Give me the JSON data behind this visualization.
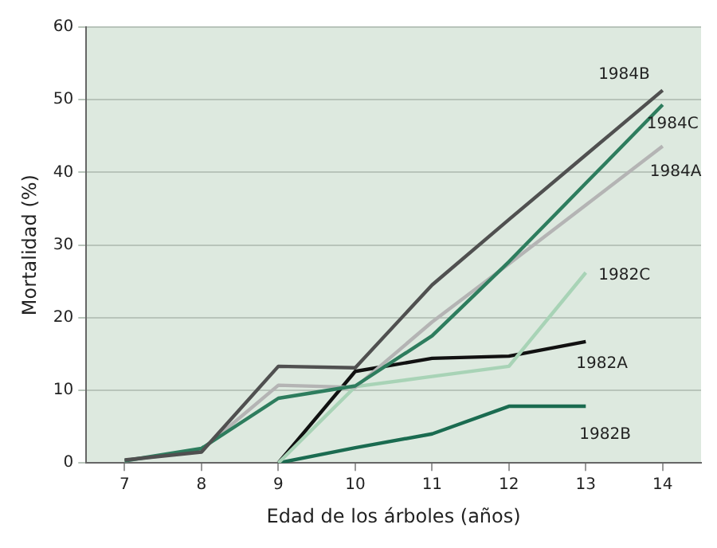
{
  "chart_data": {
    "type": "line",
    "xlabel": "Edad de los árboles (años)",
    "ylabel": "Mortalidad (%)",
    "categories": [
      "7",
      "8",
      "9",
      "10",
      "11",
      "12",
      "13",
      "14"
    ],
    "ylim": [
      0,
      60
    ],
    "yticks": [
      0,
      10,
      20,
      30,
      40,
      50,
      60
    ],
    "grid": "y",
    "legend": false,
    "marker": "none",
    "line_style": "solid",
    "series": [
      {
        "name": "1984B",
        "color": "#505050",
        "values": [
          0.4,
          1.5,
          13.3,
          13.1,
          24.5,
          33.5,
          42.4,
          51.3
        ]
      },
      {
        "name": "1984C",
        "color": "#2e7d5e",
        "values": [
          0.3,
          2,
          8.9,
          10.6,
          17.5,
          27.7,
          38.5,
          49.3
        ]
      },
      {
        "name": "1984A",
        "color": "#b4b4b4",
        "values": [
          0.3,
          1.8,
          10.7,
          10.4,
          19.4,
          27.4,
          35.5,
          43.6
        ]
      },
      {
        "name": "1982C",
        "color": "#a8d3b6",
        "values": [
          null,
          null,
          0,
          10.5,
          11.9,
          13.3,
          26.2,
          null
        ]
      },
      {
        "name": "1982A",
        "color": "#111111",
        "values": [
          null,
          null,
          0,
          12.6,
          14.4,
          14.7,
          16.7,
          null
        ]
      },
      {
        "name": "1982B",
        "color": "#1a6b50",
        "values": [
          null,
          null,
          0,
          2.1,
          4,
          7.8,
          7.8,
          null
        ]
      }
    ]
  }
}
